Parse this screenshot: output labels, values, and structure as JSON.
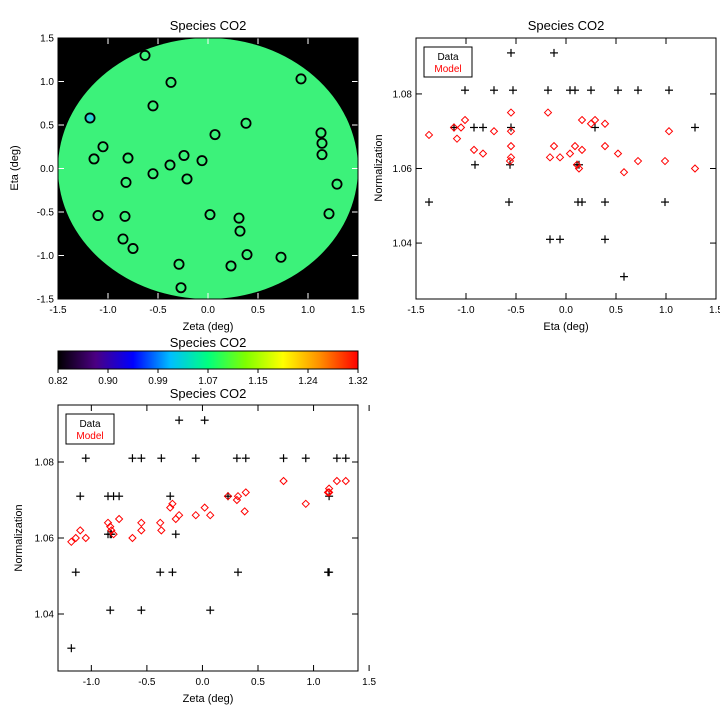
{
  "chart_data": [
    {
      "type": "scatter",
      "title": "Species CO2",
      "xlabel": "Zeta (deg)",
      "ylabel": "Eta (deg)",
      "xlim": [
        -1.5,
        1.5
      ],
      "ylim": [
        -1.5,
        1.5
      ],
      "xticks": [
        "-1.5",
        "-1.0",
        "-0.5",
        "0.0",
        "0.5",
        "1.0",
        "1.5"
      ],
      "yticks": [
        "-1.5",
        "-1.0",
        "-0.5",
        "0.0",
        "0.5",
        "1.0",
        "1.5"
      ],
      "background": "#000000",
      "disk_fill": "#3cf27a",
      "points": [
        {
          "x": -0.63,
          "y": 1.3,
          "color": "#3cf27a"
        },
        {
          "x": -0.37,
          "y": 0.99,
          "color": "#3cf27a"
        },
        {
          "x": 0.93,
          "y": 1.03,
          "color": "#3cf27a"
        },
        {
          "x": -0.55,
          "y": 0.72,
          "color": "#3cf27a"
        },
        {
          "x": -1.18,
          "y": 0.58,
          "color": "#2ad1d6"
        },
        {
          "x": 0.07,
          "y": 0.39,
          "color": "#3cf27a"
        },
        {
          "x": 0.38,
          "y": 0.52,
          "color": "#3cf27a"
        },
        {
          "x": 1.13,
          "y": 0.41,
          "color": "#3cf27a"
        },
        {
          "x": 1.14,
          "y": 0.29,
          "color": "#3cf27a"
        },
        {
          "x": -1.05,
          "y": 0.25,
          "color": "#3cf27a"
        },
        {
          "x": 1.14,
          "y": 0.16,
          "color": "#3cf27a"
        },
        {
          "x": -0.8,
          "y": 0.12,
          "color": "#3cf27a"
        },
        {
          "x": -1.14,
          "y": 0.11,
          "color": "#3cf27a"
        },
        {
          "x": -0.24,
          "y": 0.15,
          "color": "#3cf27a"
        },
        {
          "x": -0.38,
          "y": 0.04,
          "color": "#3cf27a"
        },
        {
          "x": -0.06,
          "y": 0.09,
          "color": "#3cf27a"
        },
        {
          "x": -0.55,
          "y": -0.06,
          "color": "#3cf27a"
        },
        {
          "x": -0.21,
          "y": -0.12,
          "color": "#3cf27a"
        },
        {
          "x": -0.82,
          "y": -0.16,
          "color": "#3cf27a"
        },
        {
          "x": 1.29,
          "y": -0.18,
          "color": "#3cf27a"
        },
        {
          "x": -1.1,
          "y": -0.54,
          "color": "#3cf27a"
        },
        {
          "x": -0.83,
          "y": -0.55,
          "color": "#3cf27a"
        },
        {
          "x": 0.02,
          "y": -0.53,
          "color": "#3cf27a"
        },
        {
          "x": 1.21,
          "y": -0.52,
          "color": "#3cf27a"
        },
        {
          "x": 0.31,
          "y": -0.57,
          "color": "#3cf27a"
        },
        {
          "x": 0.32,
          "y": -0.72,
          "color": "#3cf27a"
        },
        {
          "x": -0.85,
          "y": -0.81,
          "color": "#3cf27a"
        },
        {
          "x": -0.75,
          "y": -0.92,
          "color": "#3cf27a"
        },
        {
          "x": 0.39,
          "y": -0.99,
          "color": "#3cf27a"
        },
        {
          "x": 0.73,
          "y": -1.02,
          "color": "#3cf27a"
        },
        {
          "x": -0.29,
          "y": -1.1,
          "color": "#3cf27a"
        },
        {
          "x": 0.23,
          "y": -1.12,
          "color": "#3cf27a"
        },
        {
          "x": -0.27,
          "y": -1.37,
          "color": "#3cf27a"
        }
      ]
    },
    {
      "type": "scatter",
      "title": "Species CO2",
      "xlabel": "Eta (deg)",
      "ylabel": "Normalization",
      "xlim": [
        -1.5,
        1.5
      ],
      "ylim": [
        1.025,
        1.095
      ],
      "xticks": [
        "-1.5",
        "-1.0",
        "-0.5",
        "0.0",
        "0.5",
        "1.0",
        "1.5"
      ],
      "yticks": [
        "1.04",
        "1.06",
        "1.08"
      ],
      "ytick_values": [
        1.04,
        1.06,
        1.08
      ],
      "legend": {
        "position": "top-left",
        "entries": [
          {
            "label": "Data",
            "color": "#000000"
          },
          {
            "label": "Model",
            "color": "#ff0000"
          }
        ]
      },
      "series": [
        {
          "name": "Data",
          "marker": "plus",
          "color": "#000000",
          "points": [
            [
              -0.55,
              1.091
            ],
            [
              -0.12,
              1.091
            ],
            [
              -1.01,
              1.081
            ],
            [
              -0.72,
              1.081
            ],
            [
              -0.53,
              1.081
            ],
            [
              -0.18,
              1.081
            ],
            [
              0.04,
              1.081
            ],
            [
              0.09,
              1.081
            ],
            [
              0.25,
              1.081
            ],
            [
              0.52,
              1.081
            ],
            [
              0.72,
              1.081
            ],
            [
              1.03,
              1.081
            ],
            [
              -1.12,
              1.071
            ],
            [
              -0.92,
              1.071
            ],
            [
              -0.83,
              1.071
            ],
            [
              -0.55,
              1.071
            ],
            [
              0.29,
              1.071
            ],
            [
              1.29,
              1.071
            ],
            [
              -0.91,
              1.061
            ],
            [
              -0.56,
              1.061
            ],
            [
              0.11,
              1.061
            ],
            [
              0.13,
              1.061
            ],
            [
              -1.37,
              1.051
            ],
            [
              -0.57,
              1.051
            ],
            [
              0.12,
              1.051
            ],
            [
              0.16,
              1.051
            ],
            [
              0.39,
              1.051
            ],
            [
              0.99,
              1.051
            ],
            [
              -0.16,
              1.041
            ],
            [
              -0.06,
              1.041
            ],
            [
              0.39,
              1.041
            ],
            [
              0.58,
              1.031
            ]
          ]
        },
        {
          "name": "Model",
          "marker": "diamond",
          "color": "#ff0000",
          "points": [
            [
              -1.37,
              1.069
            ],
            [
              -1.12,
              1.071
            ],
            [
              -1.09,
              1.068
            ],
            [
              -1.05,
              1.071
            ],
            [
              -1.01,
              1.073
            ],
            [
              -0.92,
              1.065
            ],
            [
              -0.83,
              1.064
            ],
            [
              -0.72,
              1.07
            ],
            [
              -0.55,
              1.075
            ],
            [
              -0.55,
              1.07
            ],
            [
              -0.55,
              1.066
            ],
            [
              -0.55,
              1.063
            ],
            [
              -0.56,
              1.062
            ],
            [
              -0.18,
              1.075
            ],
            [
              -0.16,
              1.063
            ],
            [
              -0.12,
              1.066
            ],
            [
              -0.06,
              1.063
            ],
            [
              0.04,
              1.064
            ],
            [
              0.09,
              1.066
            ],
            [
              0.11,
              1.061
            ],
            [
              0.13,
              1.06
            ],
            [
              0.16,
              1.065
            ],
            [
              0.16,
              1.073
            ],
            [
              0.25,
              1.072
            ],
            [
              0.29,
              1.073
            ],
            [
              0.39,
              1.066
            ],
            [
              0.39,
              1.072
            ],
            [
              0.52,
              1.064
            ],
            [
              0.58,
              1.059
            ],
            [
              0.72,
              1.062
            ],
            [
              0.99,
              1.062
            ],
            [
              1.03,
              1.07
            ],
            [
              1.29,
              1.06
            ]
          ]
        }
      ]
    },
    {
      "type": "colorbar",
      "title": "Species CO2",
      "ticks": [
        "0.82",
        "0.90",
        "0.99",
        "1.07",
        "1.15",
        "1.24",
        "1.32"
      ],
      "range": [
        0.82,
        1.32
      ],
      "stops": [
        "#000000",
        "#4b0082",
        "#0000ff",
        "#00bfff",
        "#00ff7f",
        "#7fff00",
        "#ffff00",
        "#ff8c00",
        "#ff0000"
      ]
    },
    {
      "type": "scatter",
      "title": "Species CO2",
      "xlabel": "Zeta (deg)",
      "ylabel": "Normalization",
      "xlim": [
        -1.3,
        1.4
      ],
      "ylim": [
        1.025,
        1.095
      ],
      "xticks": [
        "-1.0",
        "-0.5",
        "0.0",
        "0.5",
        "1.0",
        "1.5"
      ],
      "xtick_values": [
        -1.0,
        -0.5,
        0.0,
        0.5,
        1.0,
        1.5
      ],
      "yticks": [
        "1.04",
        "1.06",
        "1.08"
      ],
      "ytick_values": [
        1.04,
        1.06,
        1.08
      ],
      "legend": {
        "position": "top-left",
        "entries": [
          {
            "label": "Data",
            "color": "#000000"
          },
          {
            "label": "Model",
            "color": "#ff0000"
          }
        ]
      },
      "series": [
        {
          "name": "Data",
          "marker": "plus",
          "color": "#000000",
          "points": [
            [
              -0.21,
              1.091
            ],
            [
              0.02,
              1.091
            ],
            [
              -1.05,
              1.081
            ],
            [
              -0.63,
              1.081
            ],
            [
              -0.55,
              1.081
            ],
            [
              -0.37,
              1.081
            ],
            [
              -0.06,
              1.081
            ],
            [
              0.31,
              1.081
            ],
            [
              0.39,
              1.081
            ],
            [
              0.73,
              1.081
            ],
            [
              0.93,
              1.081
            ],
            [
              1.21,
              1.081
            ],
            [
              1.29,
              1.081
            ],
            [
              -1.1,
              1.071
            ],
            [
              -0.85,
              1.071
            ],
            [
              -0.8,
              1.071
            ],
            [
              -0.75,
              1.071
            ],
            [
              -0.29,
              1.071
            ],
            [
              0.23,
              1.071
            ],
            [
              1.14,
              1.071
            ],
            [
              -0.85,
              1.061
            ],
            [
              -0.83,
              1.061
            ],
            [
              -0.82,
              1.061
            ],
            [
              -0.24,
              1.061
            ],
            [
              -1.14,
              1.051
            ],
            [
              -0.38,
              1.051
            ],
            [
              -0.27,
              1.051
            ],
            [
              0.32,
              1.051
            ],
            [
              1.13,
              1.051
            ],
            [
              1.14,
              1.051
            ],
            [
              -0.83,
              1.041
            ],
            [
              -0.55,
              1.041
            ],
            [
              0.07,
              1.041
            ],
            [
              -1.18,
              1.031
            ]
          ]
        },
        {
          "name": "Model",
          "marker": "diamond",
          "color": "#ff0000",
          "points": [
            [
              -1.18,
              1.059
            ],
            [
              -1.14,
              1.06
            ],
            [
              -1.1,
              1.062
            ],
            [
              -1.05,
              1.06
            ],
            [
              -0.85,
              1.064
            ],
            [
              -0.83,
              1.063
            ],
            [
              -0.82,
              1.062
            ],
            [
              -0.8,
              1.061
            ],
            [
              -0.75,
              1.065
            ],
            [
              -0.63,
              1.06
            ],
            [
              -0.55,
              1.062
            ],
            [
              -0.55,
              1.064
            ],
            [
              -0.38,
              1.064
            ],
            [
              -0.37,
              1.062
            ],
            [
              -0.29,
              1.068
            ],
            [
              -0.27,
              1.069
            ],
            [
              -0.24,
              1.065
            ],
            [
              -0.21,
              1.066
            ],
            [
              -0.06,
              1.066
            ],
            [
              0.02,
              1.068
            ],
            [
              0.07,
              1.066
            ],
            [
              0.23,
              1.071
            ],
            [
              0.31,
              1.07
            ],
            [
              0.32,
              1.071
            ],
            [
              0.38,
              1.067
            ],
            [
              0.39,
              1.072
            ],
            [
              0.73,
              1.075
            ],
            [
              0.93,
              1.069
            ],
            [
              1.13,
              1.072
            ],
            [
              1.14,
              1.073
            ],
            [
              1.14,
              1.072
            ],
            [
              1.21,
              1.075
            ],
            [
              1.29,
              1.075
            ]
          ]
        }
      ]
    }
  ]
}
